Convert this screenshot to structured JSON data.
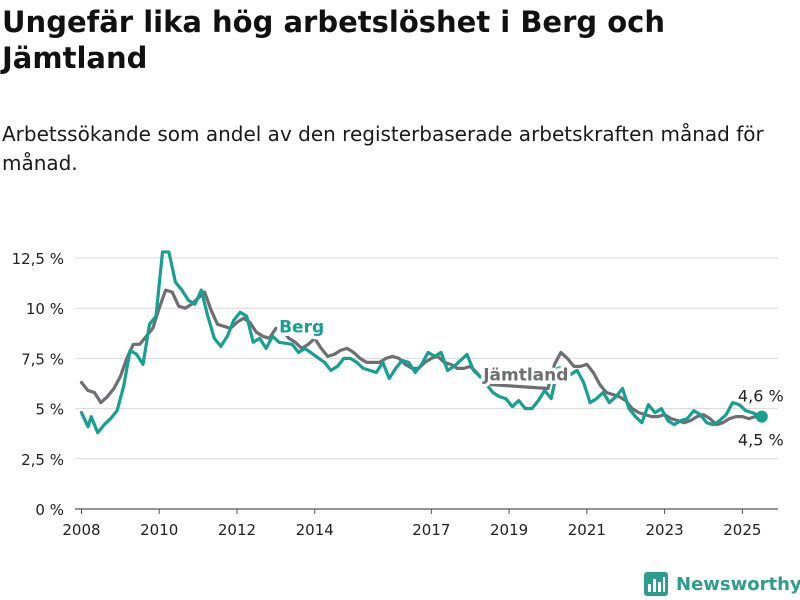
{
  "chart_data": {
    "type": "line",
    "title": "Ungefär lika hög arbetslöshet i Berg och Jämtland",
    "subtitle": "Arbetssökande som andel av den registerbaserade arbetskraften månad för månad.",
    "xlabel": "",
    "ylabel": "",
    "ylim": [
      0,
      12.5
    ],
    "xlim": [
      "2007-11",
      "2025-12"
    ],
    "grid": true,
    "y_ticks": [
      0,
      2.5,
      5,
      7.5,
      10,
      12.5
    ],
    "y_tick_labels": [
      "0 %",
      "2,5 %",
      "5 %",
      "7,5 %",
      "10 %",
      "12,5 %"
    ],
    "x_tick_labels": [
      "2008",
      "2010",
      "2012",
      "2014",
      "2017",
      "2019",
      "2021",
      "2023",
      "2025"
    ],
    "series": [
      {
        "name": "Jämtland",
        "color": "#6d6e71",
        "label_position": "2018-05",
        "points": [
          [
            "2008-01",
            6.3
          ],
          [
            "2008-03",
            5.9
          ],
          [
            "2008-05",
            5.8
          ],
          [
            "2008-07",
            5.3
          ],
          [
            "2008-09",
            5.6
          ],
          [
            "2008-11",
            6.0
          ],
          [
            "2009-01",
            6.6
          ],
          [
            "2009-03",
            7.5
          ],
          [
            "2009-05",
            8.2
          ],
          [
            "2009-07",
            8.2
          ],
          [
            "2009-09",
            8.6
          ],
          [
            "2009-11",
            9.0
          ],
          [
            "2010-01",
            10.0
          ],
          [
            "2010-03",
            10.9
          ],
          [
            "2010-05",
            10.8
          ],
          [
            "2010-07",
            10.1
          ],
          [
            "2010-09",
            10.0
          ],
          [
            "2010-11",
            10.2
          ],
          [
            "2011-01",
            10.5
          ],
          [
            "2011-03",
            10.8
          ],
          [
            "2011-05",
            9.9
          ],
          [
            "2011-07",
            9.2
          ],
          [
            "2011-09",
            9.1
          ],
          [
            "2011-11",
            9.0
          ],
          [
            "2012-01",
            9.3
          ],
          [
            "2012-03",
            9.5
          ],
          [
            "2012-05",
            9.3
          ],
          [
            "2012-07",
            8.8
          ],
          [
            "2012-09",
            8.6
          ],
          [
            "2012-11",
            8.5
          ],
          [
            "2013-01",
            9.0
          ],
          [
            "2013-03",
            8.9
          ],
          [
            "2013-05",
            8.5
          ],
          [
            "2013-07",
            8.3
          ],
          [
            "2013-09",
            8.0
          ],
          [
            "2013-11",
            8.2
          ],
          [
            "2014-01",
            8.5
          ],
          [
            "2014-03",
            8.0
          ],
          [
            "2014-05",
            7.6
          ],
          [
            "2014-07",
            7.7
          ],
          [
            "2014-09",
            7.9
          ],
          [
            "2014-11",
            8.0
          ],
          [
            "2015-01",
            7.8
          ],
          [
            "2015-03",
            7.5
          ],
          [
            "2015-05",
            7.3
          ],
          [
            "2015-07",
            7.3
          ],
          [
            "2015-09",
            7.3
          ],
          [
            "2015-11",
            7.5
          ],
          [
            "2016-01",
            7.6
          ],
          [
            "2016-03",
            7.5
          ],
          [
            "2016-05",
            7.2
          ],
          [
            "2016-07",
            7.0
          ],
          [
            "2016-09",
            7.0
          ],
          [
            "2016-11",
            7.3
          ],
          [
            "2017-01",
            7.5
          ],
          [
            "2017-03",
            7.6
          ],
          [
            "2017-05",
            7.3
          ],
          [
            "2017-07",
            7.2
          ],
          [
            "2017-09",
            7.0
          ],
          [
            "2017-11",
            7.0
          ],
          [
            "2018-01",
            7.1
          ],
          [
            "2018-03",
            6.8
          ],
          [
            "2018-05",
            6.4
          ],
          [
            "2018-07",
            6.2
          ],
          [
            "2020-01",
            6.0
          ],
          [
            "2020-03",
            7.2
          ],
          [
            "2020-05",
            7.8
          ],
          [
            "2020-07",
            7.5
          ],
          [
            "2020-09",
            7.1
          ],
          [
            "2020-11",
            7.1
          ],
          [
            "2021-01",
            7.2
          ],
          [
            "2021-03",
            6.8
          ],
          [
            "2021-05",
            6.2
          ],
          [
            "2021-07",
            5.8
          ],
          [
            "2021-09",
            5.7
          ],
          [
            "2021-11",
            5.6
          ],
          [
            "2022-01",
            5.4
          ],
          [
            "2022-03",
            5.0
          ],
          [
            "2022-05",
            4.8
          ],
          [
            "2022-07",
            4.7
          ],
          [
            "2022-09",
            4.6
          ],
          [
            "2022-11",
            4.6
          ],
          [
            "2023-01",
            4.7
          ],
          [
            "2023-03",
            4.5
          ],
          [
            "2023-05",
            4.4
          ],
          [
            "2023-07",
            4.3
          ],
          [
            "2023-09",
            4.4
          ],
          [
            "2023-11",
            4.6
          ],
          [
            "2024-01",
            4.7
          ],
          [
            "2024-03",
            4.5
          ],
          [
            "2024-05",
            4.2
          ],
          [
            "2024-07",
            4.3
          ],
          [
            "2024-09",
            4.5
          ],
          [
            "2024-11",
            4.6
          ],
          [
            "2025-01",
            4.6
          ],
          [
            "2025-03",
            4.5
          ],
          [
            "2025-05",
            4.6
          ],
          [
            "2025-07",
            4.5
          ]
        ],
        "end_label": "4,5 %"
      },
      {
        "name": "Berg",
        "color": "#16a090",
        "label_position": "2013-02",
        "points": [
          [
            "2008-01",
            4.8
          ],
          [
            "2008-03",
            4.1
          ],
          [
            "2008-04",
            4.6
          ],
          [
            "2008-06",
            3.8
          ],
          [
            "2008-08",
            4.2
          ],
          [
            "2008-10",
            4.5
          ],
          [
            "2008-12",
            4.9
          ],
          [
            "2009-02",
            6.1
          ],
          [
            "2009-04",
            7.9
          ],
          [
            "2009-06",
            7.7
          ],
          [
            "2009-08",
            7.2
          ],
          [
            "2009-10",
            9.2
          ],
          [
            "2009-12",
            9.6
          ],
          [
            "2010-02",
            12.8
          ],
          [
            "2010-04",
            12.8
          ],
          [
            "2010-06",
            11.3
          ],
          [
            "2010-08",
            10.9
          ],
          [
            "2010-10",
            10.4
          ],
          [
            "2010-12",
            10.2
          ],
          [
            "2011-02",
            10.9
          ],
          [
            "2011-04",
            9.6
          ],
          [
            "2011-06",
            8.5
          ],
          [
            "2011-08",
            8.1
          ],
          [
            "2011-10",
            8.6
          ],
          [
            "2011-12",
            9.4
          ],
          [
            "2012-02",
            9.8
          ],
          [
            "2012-04",
            9.6
          ],
          [
            "2012-06",
            8.3
          ],
          [
            "2012-08",
            8.5
          ],
          [
            "2012-10",
            8.0
          ],
          [
            "2012-12",
            8.6
          ],
          [
            "2013-02",
            8.3
          ],
          [
            "2013-06",
            8.2
          ],
          [
            "2013-08",
            7.8
          ],
          [
            "2013-10",
            8.0
          ],
          [
            "2014-04",
            7.3
          ],
          [
            "2014-06",
            6.9
          ],
          [
            "2014-08",
            7.1
          ],
          [
            "2014-10",
            7.5
          ],
          [
            "2014-12",
            7.5
          ],
          [
            "2015-02",
            7.3
          ],
          [
            "2015-04",
            7.0
          ],
          [
            "2015-06",
            6.9
          ],
          [
            "2015-08",
            6.8
          ],
          [
            "2015-10",
            7.3
          ],
          [
            "2015-12",
            6.5
          ],
          [
            "2016-02",
            7.0
          ],
          [
            "2016-04",
            7.4
          ],
          [
            "2016-06",
            7.3
          ],
          [
            "2016-08",
            6.8
          ],
          [
            "2016-10",
            7.2
          ],
          [
            "2016-12",
            7.8
          ],
          [
            "2017-02",
            7.6
          ],
          [
            "2017-04",
            7.8
          ],
          [
            "2017-06",
            6.9
          ],
          [
            "2017-08",
            7.1
          ],
          [
            "2017-10",
            7.4
          ],
          [
            "2017-12",
            7.7
          ],
          [
            "2018-02",
            6.9
          ],
          [
            "2018-04",
            6.6
          ],
          [
            "2018-06",
            6.2
          ],
          [
            "2018-08",
            5.8
          ],
          [
            "2018-10",
            5.6
          ],
          [
            "2018-12",
            5.5
          ],
          [
            "2019-02",
            5.1
          ],
          [
            "2019-04",
            5.4
          ],
          [
            "2019-06",
            5.0
          ],
          [
            "2019-08",
            5.0
          ],
          [
            "2019-10",
            5.4
          ],
          [
            "2019-12",
            5.9
          ],
          [
            "2020-02",
            5.5
          ],
          [
            "2020-04",
            7.0
          ],
          [
            "2020-06",
            7.1
          ],
          [
            "2020-08",
            6.7
          ],
          [
            "2020-10",
            6.9
          ],
          [
            "2020-12",
            6.3
          ],
          [
            "2021-02",
            5.3
          ],
          [
            "2021-04",
            5.5
          ],
          [
            "2021-06",
            5.8
          ],
          [
            "2021-08",
            5.3
          ],
          [
            "2021-10",
            5.6
          ],
          [
            "2021-12",
            6.0
          ],
          [
            "2022-02",
            5.0
          ],
          [
            "2022-04",
            4.6
          ],
          [
            "2022-06",
            4.3
          ],
          [
            "2022-08",
            5.2
          ],
          [
            "2022-10",
            4.8
          ],
          [
            "2022-12",
            5.0
          ],
          [
            "2023-02",
            4.4
          ],
          [
            "2023-04",
            4.2
          ],
          [
            "2023-06",
            4.4
          ],
          [
            "2023-08",
            4.5
          ],
          [
            "2023-10",
            4.9
          ],
          [
            "2023-12",
            4.7
          ],
          [
            "2024-02",
            4.3
          ],
          [
            "2024-04",
            4.2
          ],
          [
            "2024-06",
            4.4
          ],
          [
            "2024-08",
            4.7
          ],
          [
            "2024-10",
            5.3
          ],
          [
            "2024-12",
            5.2
          ],
          [
            "2025-02",
            4.9
          ],
          [
            "2025-04",
            4.8
          ],
          [
            "2025-07",
            4.6
          ]
        ],
        "end_label": "4,6 %"
      }
    ]
  },
  "brand": {
    "name": "Newsworthy",
    "color": "#2d9d8b",
    "icon": "bar-chart-logo-icon"
  }
}
